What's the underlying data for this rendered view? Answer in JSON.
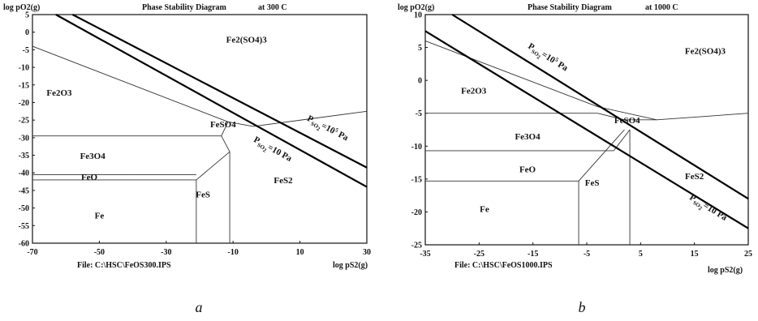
{
  "chart_data": [
    {
      "type": "phase-diagram",
      "title": "Phase Stability Diagram",
      "temperature": "at 300 C",
      "ylabel": "log pO2(g)",
      "xlabel": "log pS2(g)",
      "file": "File: C:\\HSC\\FeOS300.IPS",
      "caption": "a",
      "xlim": [
        -70,
        30
      ],
      "ylim": [
        -60,
        5
      ],
      "xticks": [
        -70,
        -50,
        -30,
        -10,
        10,
        30
      ],
      "yticks": [
        5,
        0,
        -5,
        -10,
        -15,
        -20,
        -25,
        -30,
        -35,
        -40,
        -45,
        -50,
        -55,
        -60
      ],
      "regions": [
        {
          "label": "Fe2(SO4)3",
          "x": -6,
          "y": -3
        },
        {
          "label": "Fe2O3",
          "x": -62,
          "y": -18
        },
        {
          "label": "FeSO4",
          "x": -13,
          "y": -27
        },
        {
          "label": "Fe3O4",
          "x": -52,
          "y": -36
        },
        {
          "label": "FeO",
          "x": -53,
          "y": -42
        },
        {
          "label": "FeS",
          "x": -19,
          "y": -47
        },
        {
          "label": "FeS2",
          "x": 5,
          "y": -43
        },
        {
          "label": "Fe",
          "x": -50,
          "y": -53
        }
      ],
      "boundaries": [
        [
          [
            -70,
            -4
          ],
          [
            -11.5,
            -25.5
          ]
        ],
        [
          [
            -11.5,
            -25.5
          ],
          [
            -4,
            -26.8
          ]
        ],
        [
          [
            -4,
            -26.8
          ],
          [
            30,
            -22.5
          ]
        ],
        [
          [
            -11.5,
            -25.5
          ],
          [
            -13.5,
            -29.5
          ]
        ],
        [
          [
            -70,
            -29.5
          ],
          [
            -13.5,
            -29.5
          ]
        ],
        [
          [
            -13.5,
            -29.5
          ],
          [
            -11,
            -34
          ]
        ],
        [
          [
            -11,
            -34
          ],
          [
            -11,
            -60
          ]
        ],
        [
          [
            -70,
            -40.5
          ],
          [
            -40,
            -40.5
          ]
        ],
        [
          [
            -40,
            -40.5
          ],
          [
            -21,
            -40.5
          ]
        ],
        [
          [
            -70,
            -42
          ],
          [
            -21,
            -42
          ]
        ],
        [
          [
            -21,
            -42
          ],
          [
            -11,
            -34
          ]
        ],
        [
          [
            -21,
            -42
          ],
          [
            -21,
            -60
          ]
        ]
      ],
      "pso2_lines": [
        {
          "label": "PSO2=10^5 Pa",
          "sub": "SO",
          "subidx": "2",
          "pre": "P",
          "post": "=10",
          "sup": "5",
          "unit": " Pa",
          "from": [
            -58,
            5
          ],
          "to": [
            30,
            -38.5
          ],
          "label_x": 12,
          "label_y": -25
        },
        {
          "label": "PSO2=10 Pa",
          "sub": "SO",
          "subidx": "2",
          "pre": "P",
          "post": "=10 Pa",
          "sup": "",
          "unit": "",
          "from": [
            -63,
            5
          ],
          "to": [
            30,
            -44
          ],
          "label_x": -4,
          "label_y": -31
        }
      ]
    },
    {
      "type": "phase-diagram",
      "title": "Phase Stability Diagram",
      "temperature": "at 1000 C",
      "ylabel": "log pO2(g)",
      "xlabel": "log pS2(g)",
      "file": "File: C:\\HSC\\FeOS1000.IPS",
      "caption": "b",
      "xlim": [
        -35,
        25
      ],
      "ylim": [
        -25,
        10
      ],
      "xticks": [
        -35,
        -25,
        -15,
        -5,
        5,
        15,
        25
      ],
      "yticks": [
        10,
        5,
        0,
        -5,
        -10,
        -15,
        -20,
        -25
      ],
      "regions": [
        {
          "label": "Fe2(SO4)3",
          "x": 17,
          "y": 4
        },
        {
          "label": "Fe2O3",
          "x": -26,
          "y": -2
        },
        {
          "label": "FeSO4",
          "x": 2.5,
          "y": -6.5
        },
        {
          "label": "Fe3O4",
          "x": -16,
          "y": -9
        },
        {
          "label": "FeO",
          "x": -16,
          "y": -14
        },
        {
          "label": "FeS",
          "x": -4,
          "y": -16
        },
        {
          "label": "FeS2",
          "x": 15,
          "y": -15
        },
        {
          "label": "Fe",
          "x": -24,
          "y": -20
        }
      ],
      "boundaries": [
        [
          [
            -35,
            6
          ],
          [
            -3,
            -4
          ]
        ],
        [
          [
            -3,
            -4
          ],
          [
            8,
            -6
          ]
        ],
        [
          [
            8,
            -6
          ],
          [
            25,
            -5
          ]
        ],
        [
          [
            -35,
            -5
          ],
          [
            -3,
            -5
          ]
        ],
        [
          [
            -3,
            -5
          ],
          [
            2,
            -6
          ]
        ],
        [
          [
            2,
            -6
          ],
          [
            8,
            -6
          ]
        ],
        [
          [
            -35,
            -10.7
          ],
          [
            0,
            -10.7
          ]
        ],
        [
          [
            0,
            -10.7
          ],
          [
            3,
            -7.5
          ]
        ],
        [
          [
            3,
            -7.5
          ],
          [
            3,
            -25
          ]
        ],
        [
          [
            -35,
            -15.3
          ],
          [
            -6.5,
            -15.3
          ]
        ],
        [
          [
            -6.5,
            -15.3
          ],
          [
            2,
            -7.5
          ]
        ],
        [
          [
            -6.5,
            -15.3
          ],
          [
            -6.5,
            -25
          ]
        ]
      ],
      "pso2_lines": [
        {
          "label": "PSO2=10^5 Pa",
          "sub": "SO",
          "subidx": "2",
          "pre": "P",
          "post": "=10",
          "sup": "5",
          "unit": " Pa",
          "from": [
            -30,
            10
          ],
          "to": [
            25,
            -18
          ],
          "label_x": -16,
          "label_y": 5
        },
        {
          "label": "PSO2=10 Pa",
          "sub": "SO",
          "subidx": "2",
          "pre": "P",
          "post": "=10 Pa",
          "sup": "",
          "unit": "",
          "from": [
            -35,
            7.5
          ],
          "to": [
            25,
            -22.5
          ],
          "label_x": 14,
          "label_y": -18
        }
      ]
    }
  ]
}
